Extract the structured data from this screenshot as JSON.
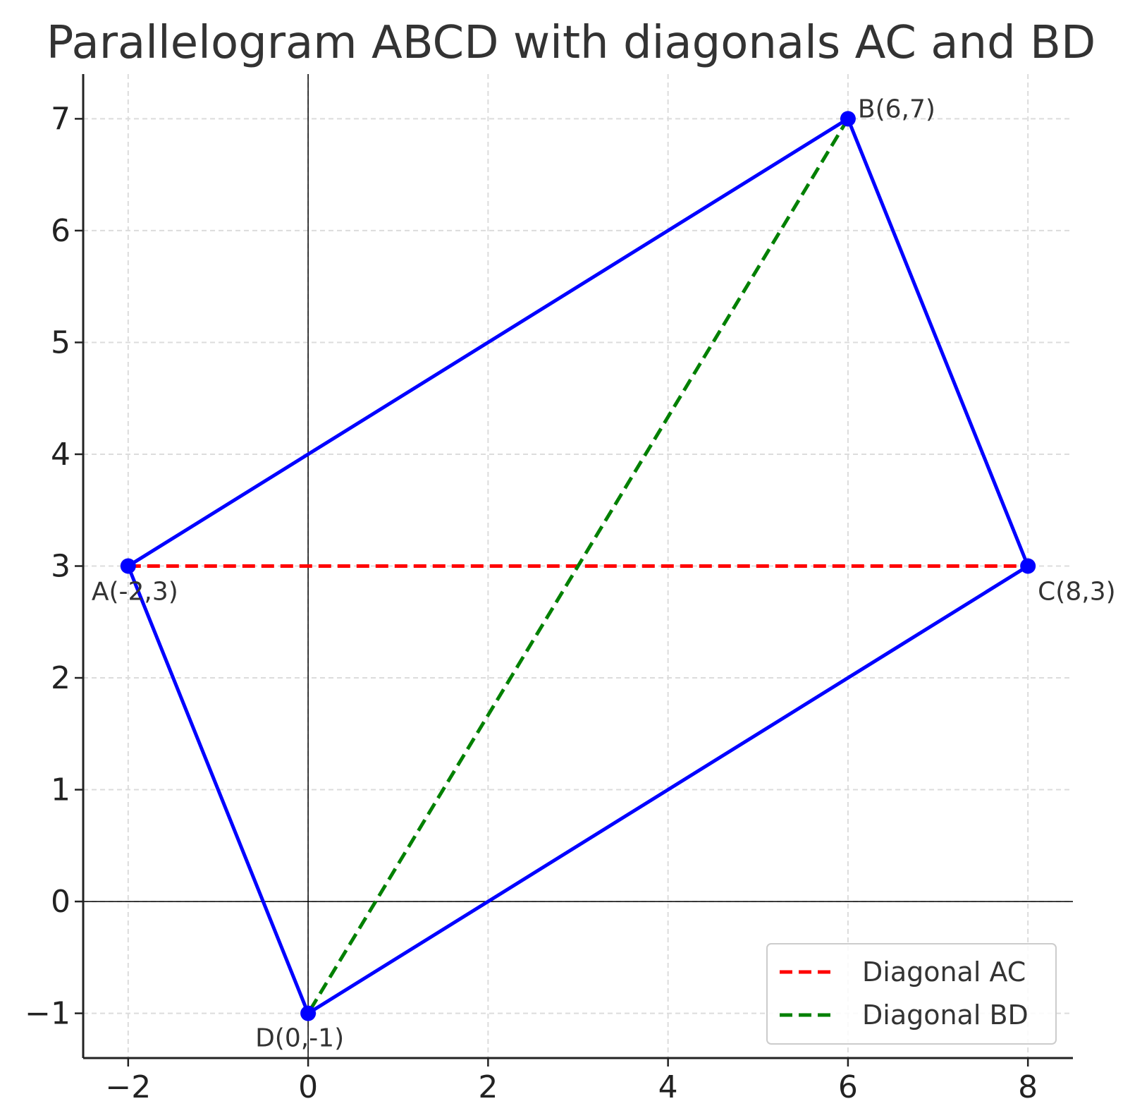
{
  "chart_data": {
    "type": "line",
    "title": "Parallelogram ABCD with diagonals AC and BD",
    "xlabel": "",
    "ylabel": "",
    "xlim": [
      -2.5,
      8.5
    ],
    "ylim": [
      -1.4,
      7.4
    ],
    "x_ticks": [
      -2,
      0,
      2,
      4,
      6,
      8
    ],
    "y_ticks": [
      -1,
      0,
      1,
      2,
      3,
      4,
      5,
      6,
      7
    ],
    "x_tick_labels": [
      "−2",
      "0",
      "2",
      "4",
      "6",
      "8"
    ],
    "y_tick_labels": [
      "−1",
      "0",
      "1",
      "2",
      "3",
      "4",
      "5",
      "6",
      "7"
    ],
    "grid": true,
    "axis_lines": {
      "x": 0,
      "y": 0
    },
    "points": [
      {
        "name": "A",
        "x": -2,
        "y": 3,
        "label": "A(-2,3)"
      },
      {
        "name": "B",
        "x": 6,
        "y": 7,
        "label": "B(6,7)"
      },
      {
        "name": "C",
        "x": 8,
        "y": 3,
        "label": "C(8,3)"
      },
      {
        "name": "D",
        "x": 0,
        "y": -1,
        "label": "D(0,-1)"
      }
    ],
    "series": [
      {
        "name": "",
        "style": "solid",
        "color": "#0000ff",
        "x": [
          -2,
          6,
          8,
          0,
          -2
        ],
        "y": [
          3,
          7,
          3,
          -1,
          3
        ]
      },
      {
        "name": "Diagonal AC",
        "style": "dashed",
        "color": "#ff0000",
        "x": [
          -2,
          8
        ],
        "y": [
          3,
          3
        ]
      },
      {
        "name": "Diagonal BD",
        "style": "dashed",
        "color": "#008000",
        "x": [
          6,
          0
        ],
        "y": [
          7,
          -1
        ]
      }
    ],
    "legend": {
      "placement": "lower-right",
      "entries": [
        "Diagonal AC",
        "Diagonal BD"
      ]
    }
  }
}
